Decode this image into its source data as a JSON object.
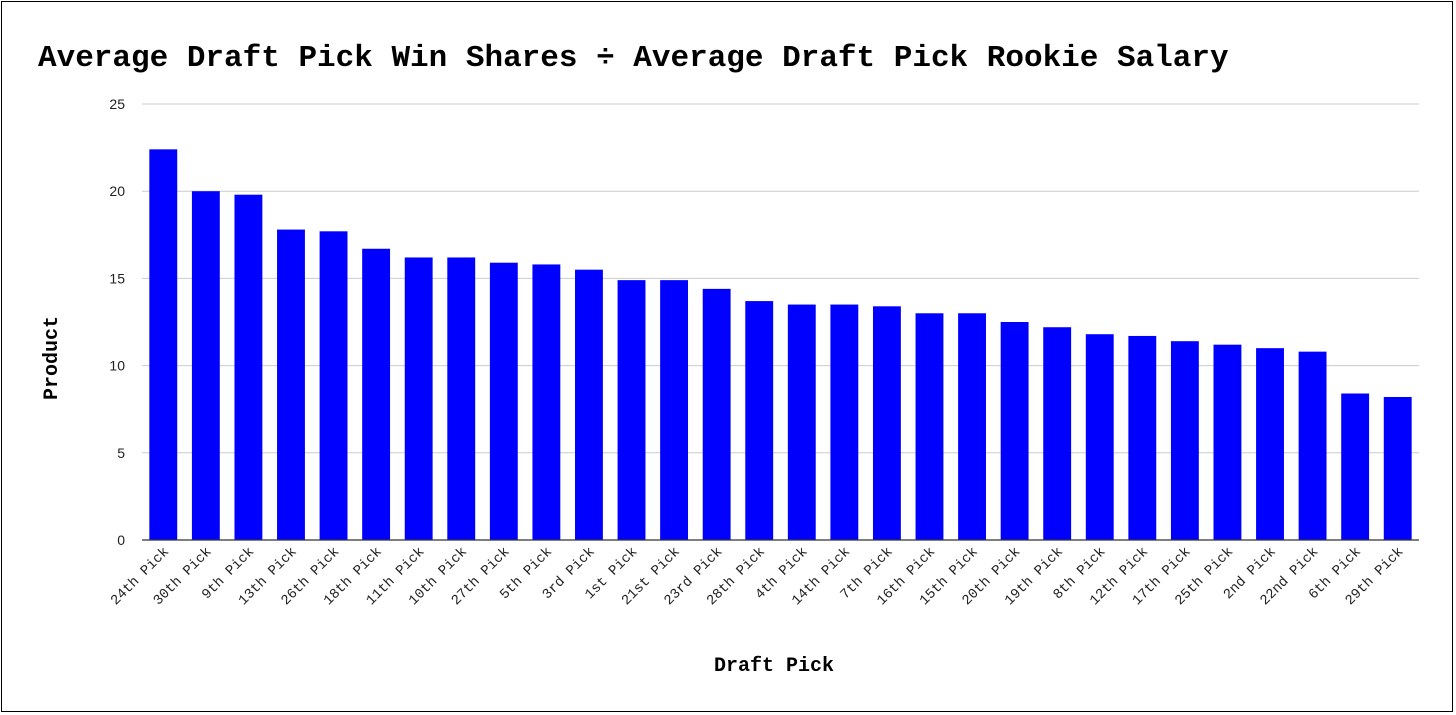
{
  "chart_data": {
    "type": "bar",
    "title": "Average Draft Pick Win Shares ÷ Average Draft Pick Rookie Salary",
    "xlabel": "Draft Pick",
    "ylabel": "Product",
    "ylim": [
      0,
      25
    ],
    "yticks": [
      0,
      5,
      10,
      15,
      20,
      25
    ],
    "grid": true,
    "legend": "none",
    "bar_color": "#0000ff",
    "categories": [
      "24th Pick",
      "30th Pick",
      "9th Pick",
      "13th Pick",
      "26th Pick",
      "18th Pick",
      "11th Pick",
      "10th Pick",
      "27th Pick",
      "5th Pick",
      "3rd Pick",
      "1st Pick",
      "21st Pick",
      "23rd Pick",
      "28th Pick",
      "4th Pick",
      "14th Pick",
      "7th Pick",
      "16th Pick",
      "15th Pick",
      "20th Pick",
      "19th Pick",
      "8th Pick",
      "12th Pick",
      "17th Pick",
      "25th Pick",
      "2nd Pick",
      "22nd Pick",
      "6th Pick",
      "29th Pick"
    ],
    "values": [
      22.4,
      20.0,
      19.8,
      17.8,
      17.7,
      16.7,
      16.2,
      16.2,
      15.9,
      15.8,
      15.5,
      14.9,
      14.9,
      14.4,
      13.7,
      13.5,
      13.5,
      13.4,
      13.0,
      13.0,
      12.5,
      12.2,
      11.8,
      11.7,
      11.4,
      11.2,
      11.0,
      10.8,
      8.4,
      8.2
    ]
  }
}
